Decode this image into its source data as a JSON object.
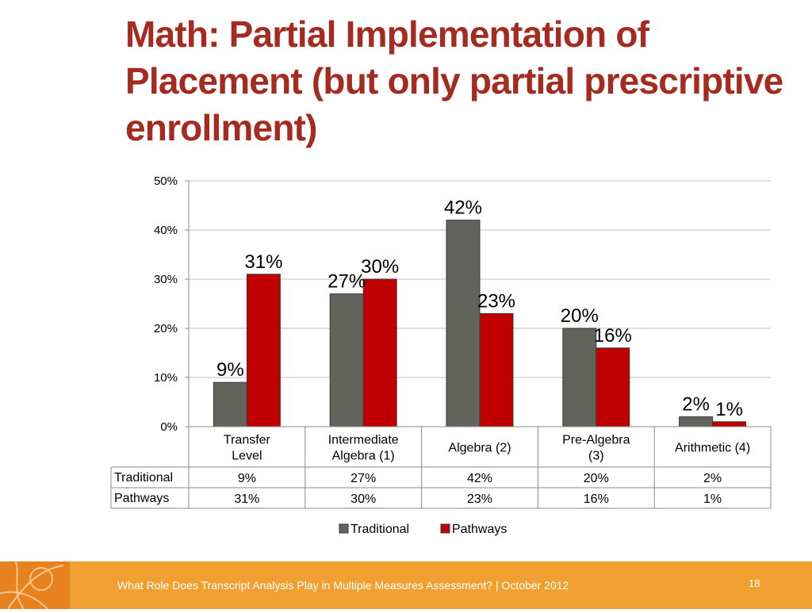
{
  "slide": {
    "title": "Math: Partial Implementation of Placement (but only partial prescriptive enrollment)",
    "footer_text": "What Role Does Transcript Analysis Play in Multiple Measures Assessment? | October 2012",
    "page_number": "18"
  },
  "chart_data": {
    "type": "bar",
    "categories": [
      [
        "Transfer",
        "Level"
      ],
      [
        "Intermediate",
        "Algebra (1)"
      ],
      [
        "Algebra (2)"
      ],
      [
        "Pre-Algebra",
        "(3)"
      ],
      [
        "Arithmetic (4)"
      ]
    ],
    "series": [
      {
        "name": "Traditional",
        "values": [
          9,
          27,
          42,
          20,
          2
        ],
        "labels": [
          "9%",
          "27%",
          "42%",
          "20%",
          "2%"
        ],
        "color": "#63635e"
      },
      {
        "name": "Pathways",
        "values": [
          31,
          30,
          23,
          16,
          1
        ],
        "labels": [
          "31%",
          "30%",
          "23%",
          "16%",
          "1%"
        ],
        "color": "#c00000"
      }
    ],
    "y_ticks": [
      "0%",
      "10%",
      "20%",
      "30%",
      "40%",
      "50%"
    ],
    "ylim": [
      0,
      50
    ],
    "grid": true,
    "data_table": true,
    "legend_position": "bottom"
  }
}
